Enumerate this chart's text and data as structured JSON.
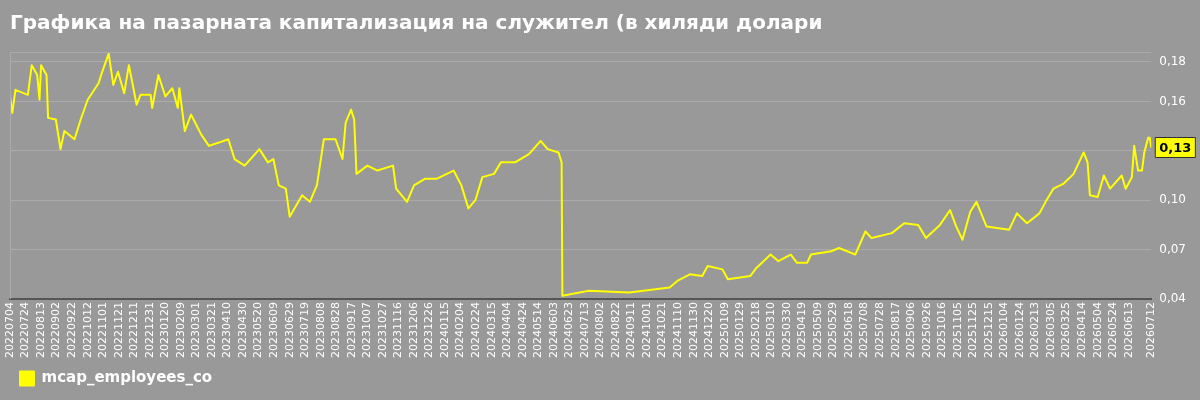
{
  "chart_data": {
    "type": "line",
    "title": "Графика на пазарната капитализация на служител (в хиляди долари",
    "x": [
      "2022-07-04",
      "2022-07-07",
      "2022-07-11",
      "2022-07-27",
      "2022-08-01",
      "2022-08-08",
      "2022-08-11",
      "2022-08-13",
      "2022-08-20",
      "2022-08-22",
      "2022-09-01",
      "2022-09-07",
      "2022-09-12",
      "2022-09-25",
      "2022-10-03",
      "2022-10-12",
      "2022-10-26",
      "2022-10-30",
      "2022-11-08",
      "2022-11-14",
      "2022-11-20",
      "2022-11-28",
      "2022-12-04",
      "2022-12-14",
      "2022-12-19",
      "2023-01-01",
      "2023-01-03",
      "2023-01-11",
      "2023-01-20",
      "2023-01-29",
      "2023-02-05",
      "2023-02-07",
      "2023-02-14",
      "2023-02-22",
      "2023-03-07",
      "2023-03-17",
      "2023-03-30",
      "2023-04-11",
      "2023-04-19",
      "2023-05-02",
      "2023-05-21",
      "2023-06-01",
      "2023-06-08",
      "2023-06-15",
      "2023-06-24",
      "2023-06-29",
      "2023-07-15",
      "2023-07-25",
      "2023-08-03",
      "2023-08-12",
      "2023-08-27",
      "2023-09-05",
      "2023-09-09",
      "2023-09-16",
      "2023-09-20",
      "2023-09-23",
      "2023-10-07",
      "2023-10-20",
      "2023-11-09",
      "2023-11-13",
      "2023-11-27",
      "2023-12-06",
      "2023-12-20",
      "2024-01-04",
      "2024-01-26",
      "2024-02-05",
      "2024-02-14",
      "2024-02-23",
      "2024-03-03",
      "2024-03-18",
      "2024-03-27",
      "2024-04-14",
      "2024-05-02",
      "2024-05-17",
      "2024-05-26",
      "2024-06-09",
      "2024-06-13",
      "2024-06-14",
      "2024-07-18",
      "2024-09-08",
      "2024-10-30",
      "2024-11-09",
      "2024-11-25",
      "2024-12-11",
      "2024-12-18",
      "2025-01-06",
      "2025-01-13",
      "2025-02-11",
      "2025-02-19",
      "2025-03-09",
      "2025-03-19",
      "2025-04-04",
      "2025-04-12",
      "2025-04-25",
      "2025-04-30",
      "2025-05-26",
      "2025-06-05",
      "2025-06-26",
      "2025-07-09",
      "2025-07-17",
      "2025-08-12",
      "2025-08-28",
      "2025-09-15",
      "2025-09-25",
      "2025-10-13",
      "2025-10-26",
      "2025-11-03",
      "2025-11-11",
      "2025-11-21",
      "2025-11-29",
      "2025-12-12",
      "2026-01-10",
      "2026-01-20",
      "2026-02-02",
      "2026-02-18",
      "2026-02-26",
      "2026-03-08",
      "2026-03-21",
      "2026-04-03",
      "2026-04-11",
      "2026-04-16",
      "2026-04-21",
      "2026-04-24",
      "2026-05-04",
      "2026-05-12",
      "2026-05-20",
      "2026-06-04",
      "2026-06-09",
      "2026-06-17",
      "2026-06-20",
      "2026-06-25",
      "2026-06-30",
      "2026-07-03",
      "2026-07-08",
      "2026-07-10",
      "2026-07-12"
    ],
    "series": [
      {
        "name": "mcap_employees_co",
        "color": "#ffff00",
        "values": [
          0.163,
          0.153,
          0.167,
          0.164,
          0.182,
          0.176,
          0.161,
          0.182,
          0.176,
          0.15,
          0.149,
          0.131,
          0.142,
          0.137,
          0.149,
          0.161,
          0.171,
          0.177,
          0.189,
          0.17,
          0.178,
          0.165,
          0.182,
          0.158,
          0.164,
          0.164,
          0.156,
          0.176,
          0.163,
          0.168,
          0.156,
          0.168,
          0.142,
          0.152,
          0.14,
          0.133,
          0.135,
          0.137,
          0.125,
          0.121,
          0.131,
          0.123,
          0.125,
          0.109,
          0.107,
          0.09,
          0.103,
          0.099,
          0.109,
          0.137,
          0.137,
          0.125,
          0.147,
          0.155,
          0.149,
          0.116,
          0.121,
          0.118,
          0.121,
          0.107,
          0.099,
          0.109,
          0.113,
          0.113,
          0.118,
          0.109,
          0.095,
          0.1,
          0.114,
          0.116,
          0.123,
          0.123,
          0.128,
          0.136,
          0.131,
          0.129,
          0.123,
          0.042,
          0.045,
          0.044,
          0.047,
          0.051,
          0.055,
          0.054,
          0.06,
          0.058,
          0.052,
          0.054,
          0.059,
          0.067,
          0.063,
          0.067,
          0.062,
          0.062,
          0.067,
          0.069,
          0.071,
          0.067,
          0.081,
          0.077,
          0.08,
          0.086,
          0.085,
          0.077,
          0.085,
          0.094,
          0.084,
          0.076,
          0.093,
          0.099,
          0.084,
          0.082,
          0.092,
          0.086,
          0.092,
          0.099,
          0.107,
          0.11,
          0.116,
          0.124,
          0.129,
          0.123,
          0.103,
          0.102,
          0.115,
          0.107,
          0.115,
          0.107,
          0.114,
          0.133,
          0.118,
          0.118,
          0.129,
          0.138,
          0.138,
          0.132
        ]
      }
    ],
    "xlim": [
      "2022-07-04",
      "2026-07-12"
    ],
    "xticks": [
      {
        "value": "2022-07-04",
        "label": "20220704"
      },
      {
        "value": "2022-07-24",
        "label": "20220724"
      },
      {
        "value": "2022-08-13",
        "label": "20220813"
      },
      {
        "value": "2022-09-02",
        "label": "20220902"
      },
      {
        "value": "2022-09-22",
        "label": "20220922"
      },
      {
        "value": "2022-10-12",
        "label": "20221012"
      },
      {
        "value": "2022-11-01",
        "label": "20221101"
      },
      {
        "value": "2022-11-21",
        "label": "20221121"
      },
      {
        "value": "2022-12-11",
        "label": "20221211"
      },
      {
        "value": "2022-12-31",
        "label": "20221231"
      },
      {
        "value": "2023-01-20",
        "label": "20230120"
      },
      {
        "value": "2023-02-09",
        "label": "20230209"
      },
      {
        "value": "2023-03-01",
        "label": "20230301"
      },
      {
        "value": "2023-03-21",
        "label": "20230321"
      },
      {
        "value": "2023-04-10",
        "label": "20230410"
      },
      {
        "value": "2023-04-30",
        "label": "20230430"
      },
      {
        "value": "2023-05-20",
        "label": "20230520"
      },
      {
        "value": "2023-06-09",
        "label": "20230609"
      },
      {
        "value": "2023-06-29",
        "label": "20230629"
      },
      {
        "value": "2023-07-19",
        "label": "20230719"
      },
      {
        "value": "2023-08-08",
        "label": "20230808"
      },
      {
        "value": "2023-08-28",
        "label": "20230828"
      },
      {
        "value": "2023-09-17",
        "label": "20230917"
      },
      {
        "value": "2023-10-07",
        "label": "20231007"
      },
      {
        "value": "2023-10-27",
        "label": "20231027"
      },
      {
        "value": "2023-11-16",
        "label": "20231116"
      },
      {
        "value": "2023-12-06",
        "label": "20231206"
      },
      {
        "value": "2023-12-26",
        "label": "20231226"
      },
      {
        "value": "2024-01-15",
        "label": "20240115"
      },
      {
        "value": "2024-02-04",
        "label": "20240204"
      },
      {
        "value": "2024-02-24",
        "label": "20240224"
      },
      {
        "value": "2024-03-15",
        "label": "20240315"
      },
      {
        "value": "2024-04-04",
        "label": "20240404"
      },
      {
        "value": "2024-04-24",
        "label": "20240424"
      },
      {
        "value": "2024-05-14",
        "label": "20240514"
      },
      {
        "value": "2024-06-03",
        "label": "20240603"
      },
      {
        "value": "2024-06-23",
        "label": "20240623"
      },
      {
        "value": "2024-07-13",
        "label": "20240713"
      },
      {
        "value": "2024-08-02",
        "label": "20240802"
      },
      {
        "value": "2024-08-22",
        "label": "20240822"
      },
      {
        "value": "2024-09-11",
        "label": "20240911"
      },
      {
        "value": "2024-10-01",
        "label": "20241001"
      },
      {
        "value": "2024-10-21",
        "label": "20241021"
      },
      {
        "value": "2024-11-10",
        "label": "20241110"
      },
      {
        "value": "2024-11-30",
        "label": "20241130"
      },
      {
        "value": "2024-12-20",
        "label": "20241220"
      },
      {
        "value": "2025-01-09",
        "label": "20250109"
      },
      {
        "value": "2025-01-29",
        "label": "20250129"
      },
      {
        "value": "2025-02-18",
        "label": "20250218"
      },
      {
        "value": "2025-03-10",
        "label": "20250310"
      },
      {
        "value": "2025-03-30",
        "label": "20250330"
      },
      {
        "value": "2025-04-19",
        "label": "20250419"
      },
      {
        "value": "2025-05-09",
        "label": "20250509"
      },
      {
        "value": "2025-05-29",
        "label": "20250529"
      },
      {
        "value": "2025-06-18",
        "label": "20250618"
      },
      {
        "value": "2025-07-08",
        "label": "20250708"
      },
      {
        "value": "2025-07-28",
        "label": "20250728"
      },
      {
        "value": "2025-08-17",
        "label": "20250817"
      },
      {
        "value": "2025-09-06",
        "label": "20250906"
      },
      {
        "value": "2025-09-26",
        "label": "20250926"
      },
      {
        "value": "2025-10-16",
        "label": "20251016"
      },
      {
        "value": "2025-11-05",
        "label": "20251105"
      },
      {
        "value": "2025-11-25",
        "label": "20251125"
      },
      {
        "value": "2025-12-15",
        "label": "20251215"
      },
      {
        "value": "2026-01-04",
        "label": "20260104"
      },
      {
        "value": "2026-01-24",
        "label": "20260124"
      },
      {
        "value": "2026-02-13",
        "label": "20260213"
      },
      {
        "value": "2026-03-05",
        "label": "20260305"
      },
      {
        "value": "2026-03-25",
        "label": "20260325"
      },
      {
        "value": "2026-04-14",
        "label": "20260414"
      },
      {
        "value": "2026-05-04",
        "label": "20260504"
      },
      {
        "value": "2026-05-24",
        "label": "20260524"
      },
      {
        "value": "2026-06-13",
        "label": "20260613"
      },
      {
        "value": "2026-07-12",
        "label": "20260712"
      }
    ],
    "ylim": [
      0.04,
      0.19
    ],
    "yticks": [
      {
        "value": 0.04,
        "label": "0,04"
      },
      {
        "value": 0.07,
        "label": "0,07"
      },
      {
        "value": 0.1,
        "label": "0,10"
      },
      {
        "value": 0.13,
        "label": null
      },
      {
        "value": 0.16,
        "label": "0,16"
      },
      {
        "value": 0.184,
        "label": "0,18"
      }
    ],
    "annotations": [
      {
        "text": "0,13",
        "x": "2026-07-12",
        "y": 0.132
      }
    ],
    "grid": "y",
    "legend": "bottom left",
    "marker": "none",
    "line_style": "solid"
  }
}
